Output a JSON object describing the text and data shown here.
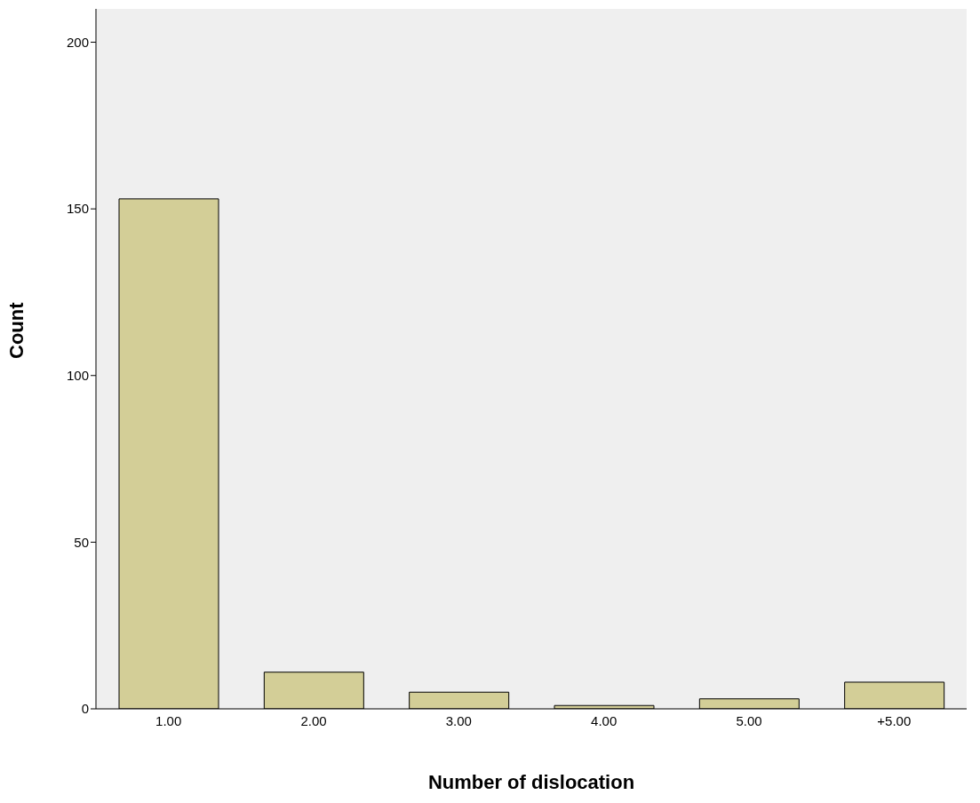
{
  "chart_data": {
    "type": "bar",
    "xlabel": "Number of dislocation",
    "ylabel": "Count",
    "categories": [
      "1.00",
      "2.00",
      "3.00",
      "4.00",
      "5.00",
      "+5.00"
    ],
    "values": [
      153,
      11,
      5,
      1,
      3,
      8
    ],
    "color": "#d3ce97",
    "ylim": [
      0,
      210
    ],
    "yticks": [
      0,
      50,
      100,
      150,
      200
    ],
    "grid": false,
    "legend": false
  }
}
